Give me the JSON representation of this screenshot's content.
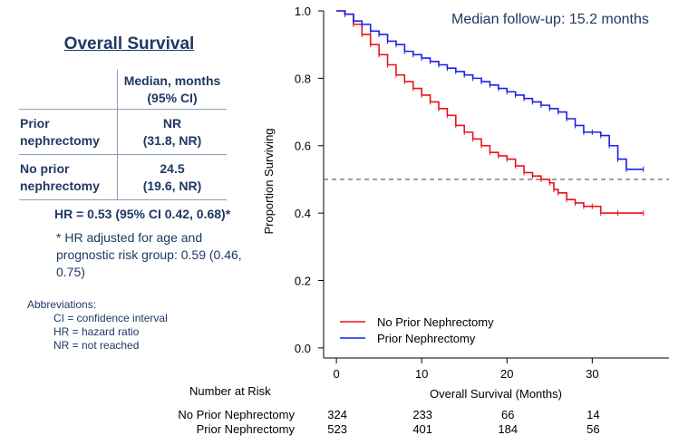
{
  "left_panel": {
    "title": "Overall Survival",
    "table": {
      "header": [
        "Median, months",
        "(95% CI)"
      ],
      "rows": [
        {
          "label": [
            "Prior",
            "nephrectomy"
          ],
          "value": [
            "NR",
            "(31.8, NR)"
          ]
        },
        {
          "label": [
            "No prior",
            "nephrectomy"
          ],
          "value": [
            "24.5",
            "(19.6, NR)"
          ]
        }
      ]
    },
    "hr": "HR = 0.53 (95% CI 0.42, 0.68)*",
    "hr_note": "* HR adjusted for age and prognostic risk group: 0.59 (0.46, 0.75)",
    "abbreviations": {
      "heading": "Abbreviations:",
      "items": [
        "CI = confidence interval",
        "HR = hazard ratio",
        "NR = not reached"
      ]
    }
  },
  "annotation": "Median follow-up: 15.2 months",
  "number_at_risk": {
    "heading": "Number at Risk",
    "times": [
      0,
      10,
      20,
      30
    ],
    "rows": [
      {
        "name": "No Prior Nephrectomy",
        "values": [
          "324",
          "233",
          "66",
          "14"
        ]
      },
      {
        "name": "Prior Nephrectomy",
        "values": [
          "523",
          "401",
          "184",
          "56"
        ]
      }
    ]
  },
  "colors": {
    "no_prior": "#e8141b",
    "prior": "#1a21e6",
    "text_blue": "#1f3864",
    "median_line": "#555555"
  },
  "chart_data": {
    "type": "line",
    "xlabel": "Overall Survival (Months)",
    "ylabel": "Proportion Surviving",
    "xlim": [
      -1.5,
      39
    ],
    "ylim": [
      -0.03,
      1.0
    ],
    "xticks": [
      "0",
      "10",
      "20",
      "30"
    ],
    "yticks": [
      "0.0",
      "0.2",
      "0.4",
      "0.6",
      "0.8",
      "1.0"
    ],
    "median_reference": 0.5,
    "legend_position": "bottom-left",
    "series": [
      {
        "name": "No Prior Nephrectomy",
        "color": "#e8141b",
        "points": [
          [
            0,
            1.0
          ],
          [
            1,
            0.99
          ],
          [
            2,
            0.96
          ],
          [
            3,
            0.93
          ],
          [
            4,
            0.9
          ],
          [
            5,
            0.87
          ],
          [
            6,
            0.84
          ],
          [
            7,
            0.81
          ],
          [
            8,
            0.79
          ],
          [
            9,
            0.77
          ],
          [
            10,
            0.75
          ],
          [
            11,
            0.73
          ],
          [
            12,
            0.71
          ],
          [
            13,
            0.69
          ],
          [
            14,
            0.66
          ],
          [
            15,
            0.64
          ],
          [
            16,
            0.62
          ],
          [
            17,
            0.6
          ],
          [
            18,
            0.58
          ],
          [
            19,
            0.57
          ],
          [
            20,
            0.56
          ],
          [
            21,
            0.54
          ],
          [
            22,
            0.52
          ],
          [
            23,
            0.51
          ],
          [
            24,
            0.5
          ],
          [
            25,
            0.49
          ],
          [
            25.5,
            0.47
          ],
          [
            26,
            0.46
          ],
          [
            27,
            0.44
          ],
          [
            28,
            0.43
          ],
          [
            29,
            0.42
          ],
          [
            30,
            0.42
          ],
          [
            31,
            0.4
          ],
          [
            33,
            0.4
          ],
          [
            36,
            0.4
          ]
        ]
      },
      {
        "name": "Prior Nephrectomy",
        "color": "#1a21e6",
        "points": [
          [
            0,
            1.0
          ],
          [
            1,
            0.99
          ],
          [
            2,
            0.97
          ],
          [
            3,
            0.96
          ],
          [
            4,
            0.94
          ],
          [
            5,
            0.93
          ],
          [
            6,
            0.91
          ],
          [
            7,
            0.9
          ],
          [
            8,
            0.88
          ],
          [
            9,
            0.87
          ],
          [
            10,
            0.86
          ],
          [
            11,
            0.85
          ],
          [
            12,
            0.84
          ],
          [
            13,
            0.83
          ],
          [
            14,
            0.82
          ],
          [
            15,
            0.81
          ],
          [
            16,
            0.8
          ],
          [
            17,
            0.79
          ],
          [
            18,
            0.78
          ],
          [
            19,
            0.77
          ],
          [
            20,
            0.76
          ],
          [
            21,
            0.75
          ],
          [
            22,
            0.74
          ],
          [
            23,
            0.73
          ],
          [
            24,
            0.72
          ],
          [
            25,
            0.71
          ],
          [
            26,
            0.7
          ],
          [
            27,
            0.68
          ],
          [
            28,
            0.66
          ],
          [
            29,
            0.64
          ],
          [
            30,
            0.64
          ],
          [
            31,
            0.63
          ],
          [
            32,
            0.6
          ],
          [
            33,
            0.56
          ],
          [
            34,
            0.53
          ],
          [
            36,
            0.53
          ]
        ]
      }
    ]
  }
}
